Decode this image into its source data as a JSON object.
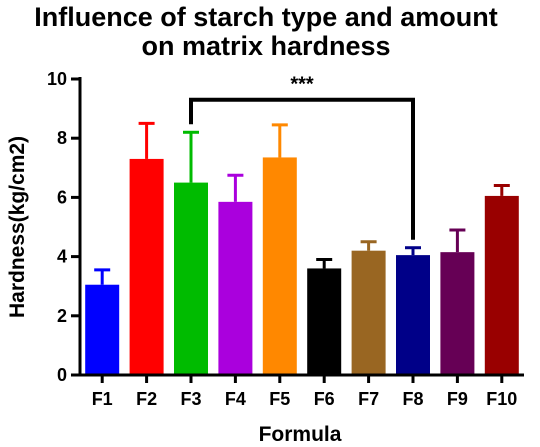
{
  "chart_data": {
    "type": "bar",
    "title_lines": [
      "Influence of starch type and amount",
      "on matrix hardness"
    ],
    "xlabel": "Formula",
    "ylabel": "Hardness(kg/cm2)",
    "ylim": [
      0,
      10
    ],
    "yticks": [
      0,
      2,
      4,
      6,
      8,
      10
    ],
    "grid": false,
    "categories": [
      "F1",
      "F2",
      "F3",
      "F4",
      "F5",
      "F6",
      "F7",
      "F8",
      "F9",
      "F10"
    ],
    "values": [
      3.05,
      7.3,
      6.5,
      5.85,
      7.35,
      3.6,
      4.2,
      4.05,
      4.15,
      6.05
    ],
    "error_upper": [
      0.5,
      1.2,
      1.7,
      0.9,
      1.1,
      0.3,
      0.3,
      0.25,
      0.75,
      0.35
    ],
    "colors": [
      "#0000ff",
      "#ff0000",
      "#00bb00",
      "#aa00dd",
      "#ff8800",
      "#000000",
      "#996622",
      "#000088",
      "#660055",
      "#990000"
    ],
    "annotation": {
      "text": "***",
      "from": "F3",
      "to": "F8",
      "y": 9.3
    }
  }
}
